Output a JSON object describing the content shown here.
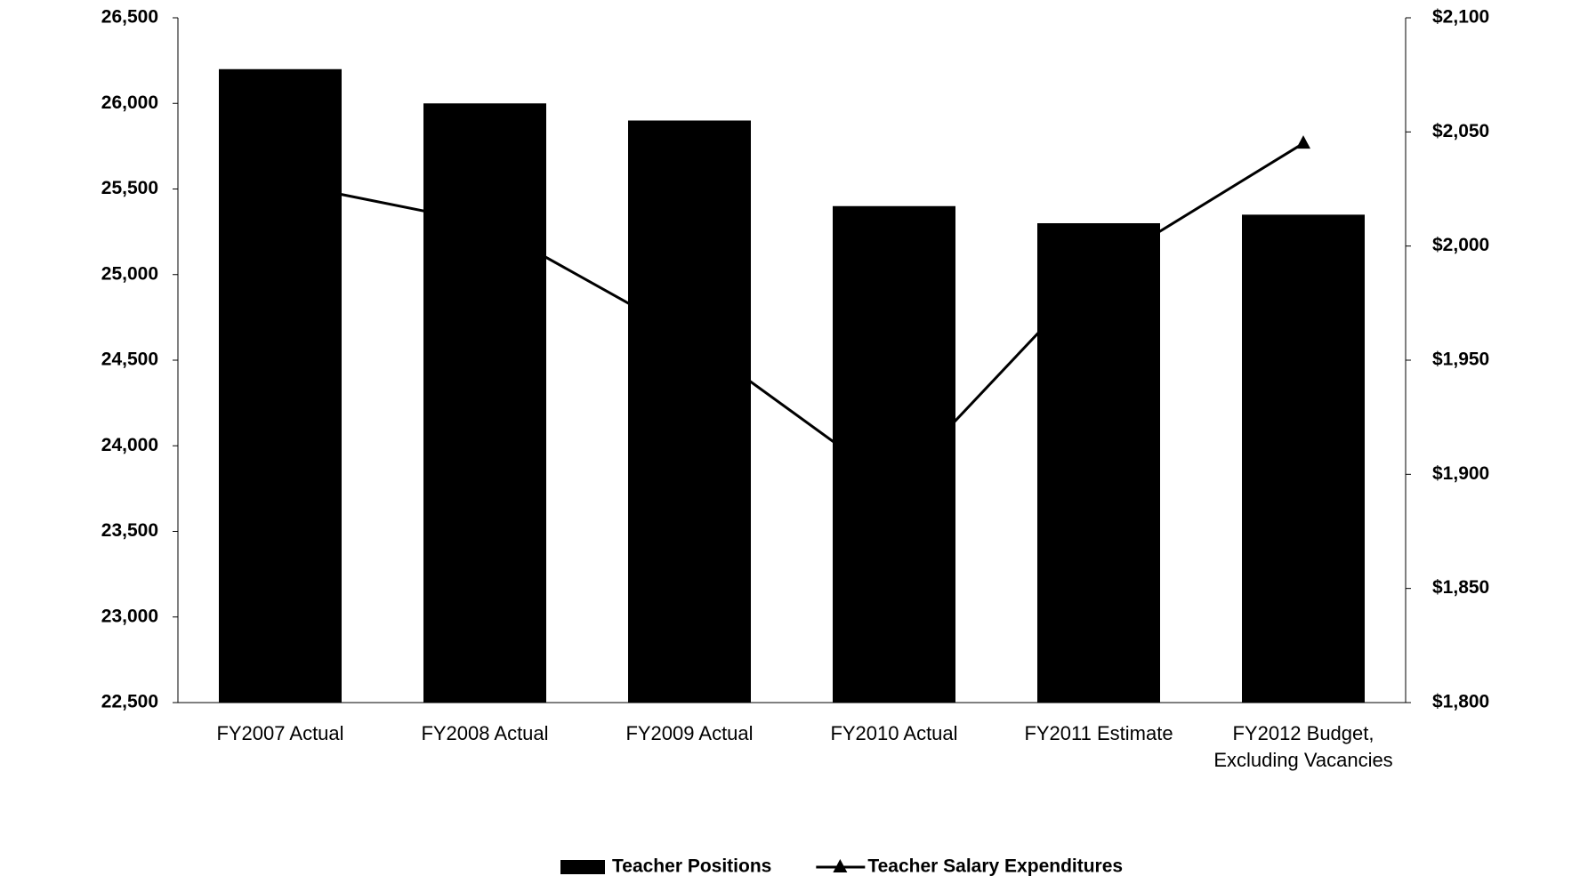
{
  "chart_data": {
    "type": "bar_line",
    "categories": [
      "FY2007 Actual",
      "FY2008 Actual",
      "FY2009 Actual",
      "FY2010 Actual",
      "FY2011 Estimate",
      "FY2012 Budget, Excluding Vacancies"
    ],
    "series": [
      {
        "name": "Teacher Positions",
        "color": "#000000",
        "type": "bar",
        "values": [
          26200,
          26000,
          25900,
          25400,
          25300,
          25350
        ]
      },
      {
        "name": "Teacher Salary Expenditures",
        "color": "#000000",
        "type": "line",
        "axis": "y2",
        "values": [
          2028,
          2010,
          1960,
          1895,
          1990,
          2045
        ]
      }
    ],
    "ylim": [
      22500,
      26500
    ],
    "yticks": [
      {
        "value": 22500,
        "label": "22,500"
      },
      {
        "value": 23000,
        "label": "23,000"
      },
      {
        "value": 23500,
        "label": "23,500"
      },
      {
        "value": 24000,
        "label": "24,000"
      },
      {
        "value": 24500,
        "label": "24,500"
      },
      {
        "value": 25000,
        "label": "25,000"
      },
      {
        "value": 25500,
        "label": "25,500"
      },
      {
        "value": 26000,
        "label": "26,000"
      },
      {
        "value": 26500,
        "label": "26,500"
      }
    ],
    "y2lim": [
      1800,
      2100
    ],
    "y2ticks": [
      {
        "value": 1800,
        "label": "$1,800"
      },
      {
        "value": 1850,
        "label": "$1,850"
      },
      {
        "value": 1900,
        "label": "$1,900"
      },
      {
        "value": 1950,
        "label": "$1,950"
      },
      {
        "value": 2000,
        "label": "$2,000"
      },
      {
        "value": 2050,
        "label": "$2,050"
      },
      {
        "value": 2100,
        "label": "$2,100"
      }
    ],
    "legend": "bottom"
  }
}
